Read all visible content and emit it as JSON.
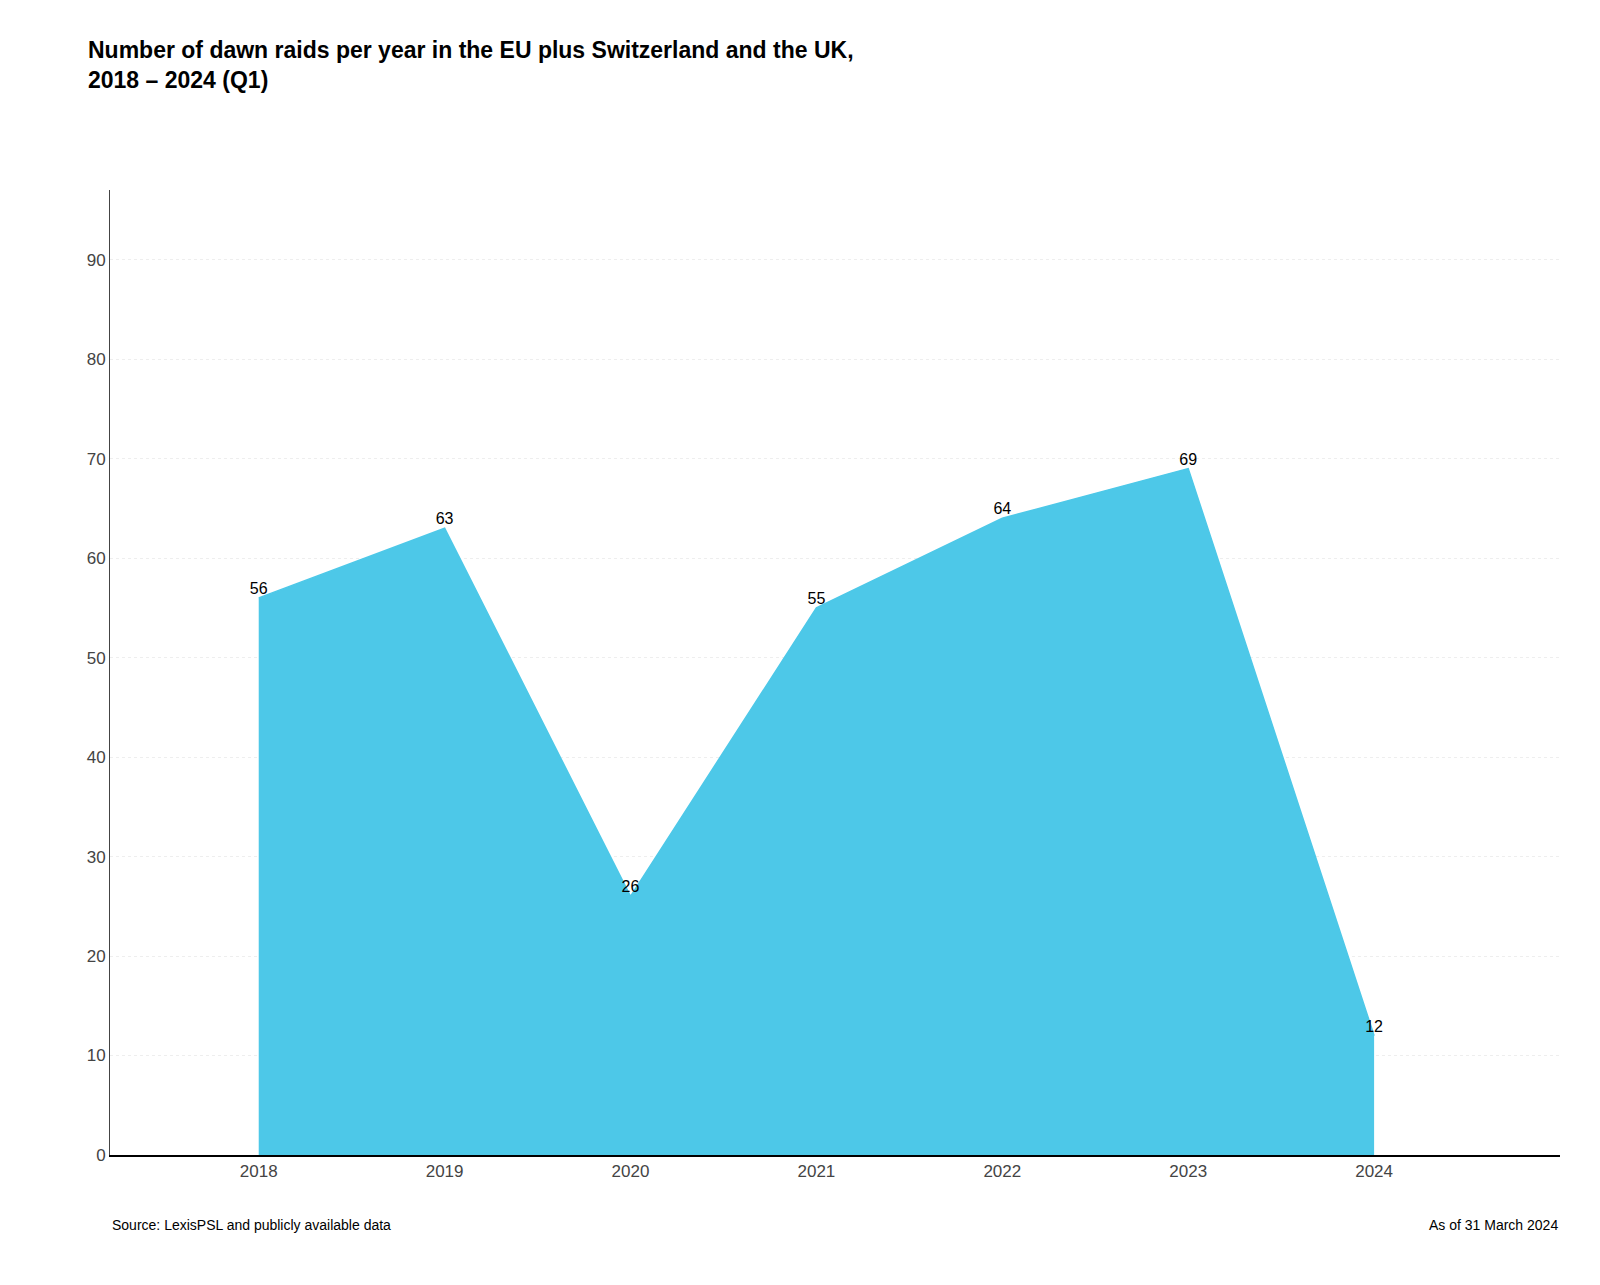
{
  "chart_data": {
    "type": "area",
    "title": "Number of dawn raids per year in the EU plus Switzerland and the UK,",
    "subtitle": "2018 – 2024 (Q1)",
    "x": [
      2018,
      2019,
      2020,
      2021,
      2022,
      2023,
      2024
    ],
    "values": [
      56,
      63,
      26,
      55,
      64,
      69,
      12
    ],
    "color": "#4DC8E8",
    "xlim": [
      2017.2,
      2025.0
    ],
    "xticks": [
      2018,
      2019,
      2020,
      2021,
      2022,
      2023,
      2024
    ],
    "ylim": [
      0,
      97
    ],
    "yticks": [
      0,
      10,
      20,
      30,
      40,
      50,
      60,
      70,
      80,
      90
    ],
    "grid": true,
    "data_labels": true,
    "annotations": [
      "Source: LexisPSL and publicly available data",
      "As of 31 March 2024"
    ]
  }
}
